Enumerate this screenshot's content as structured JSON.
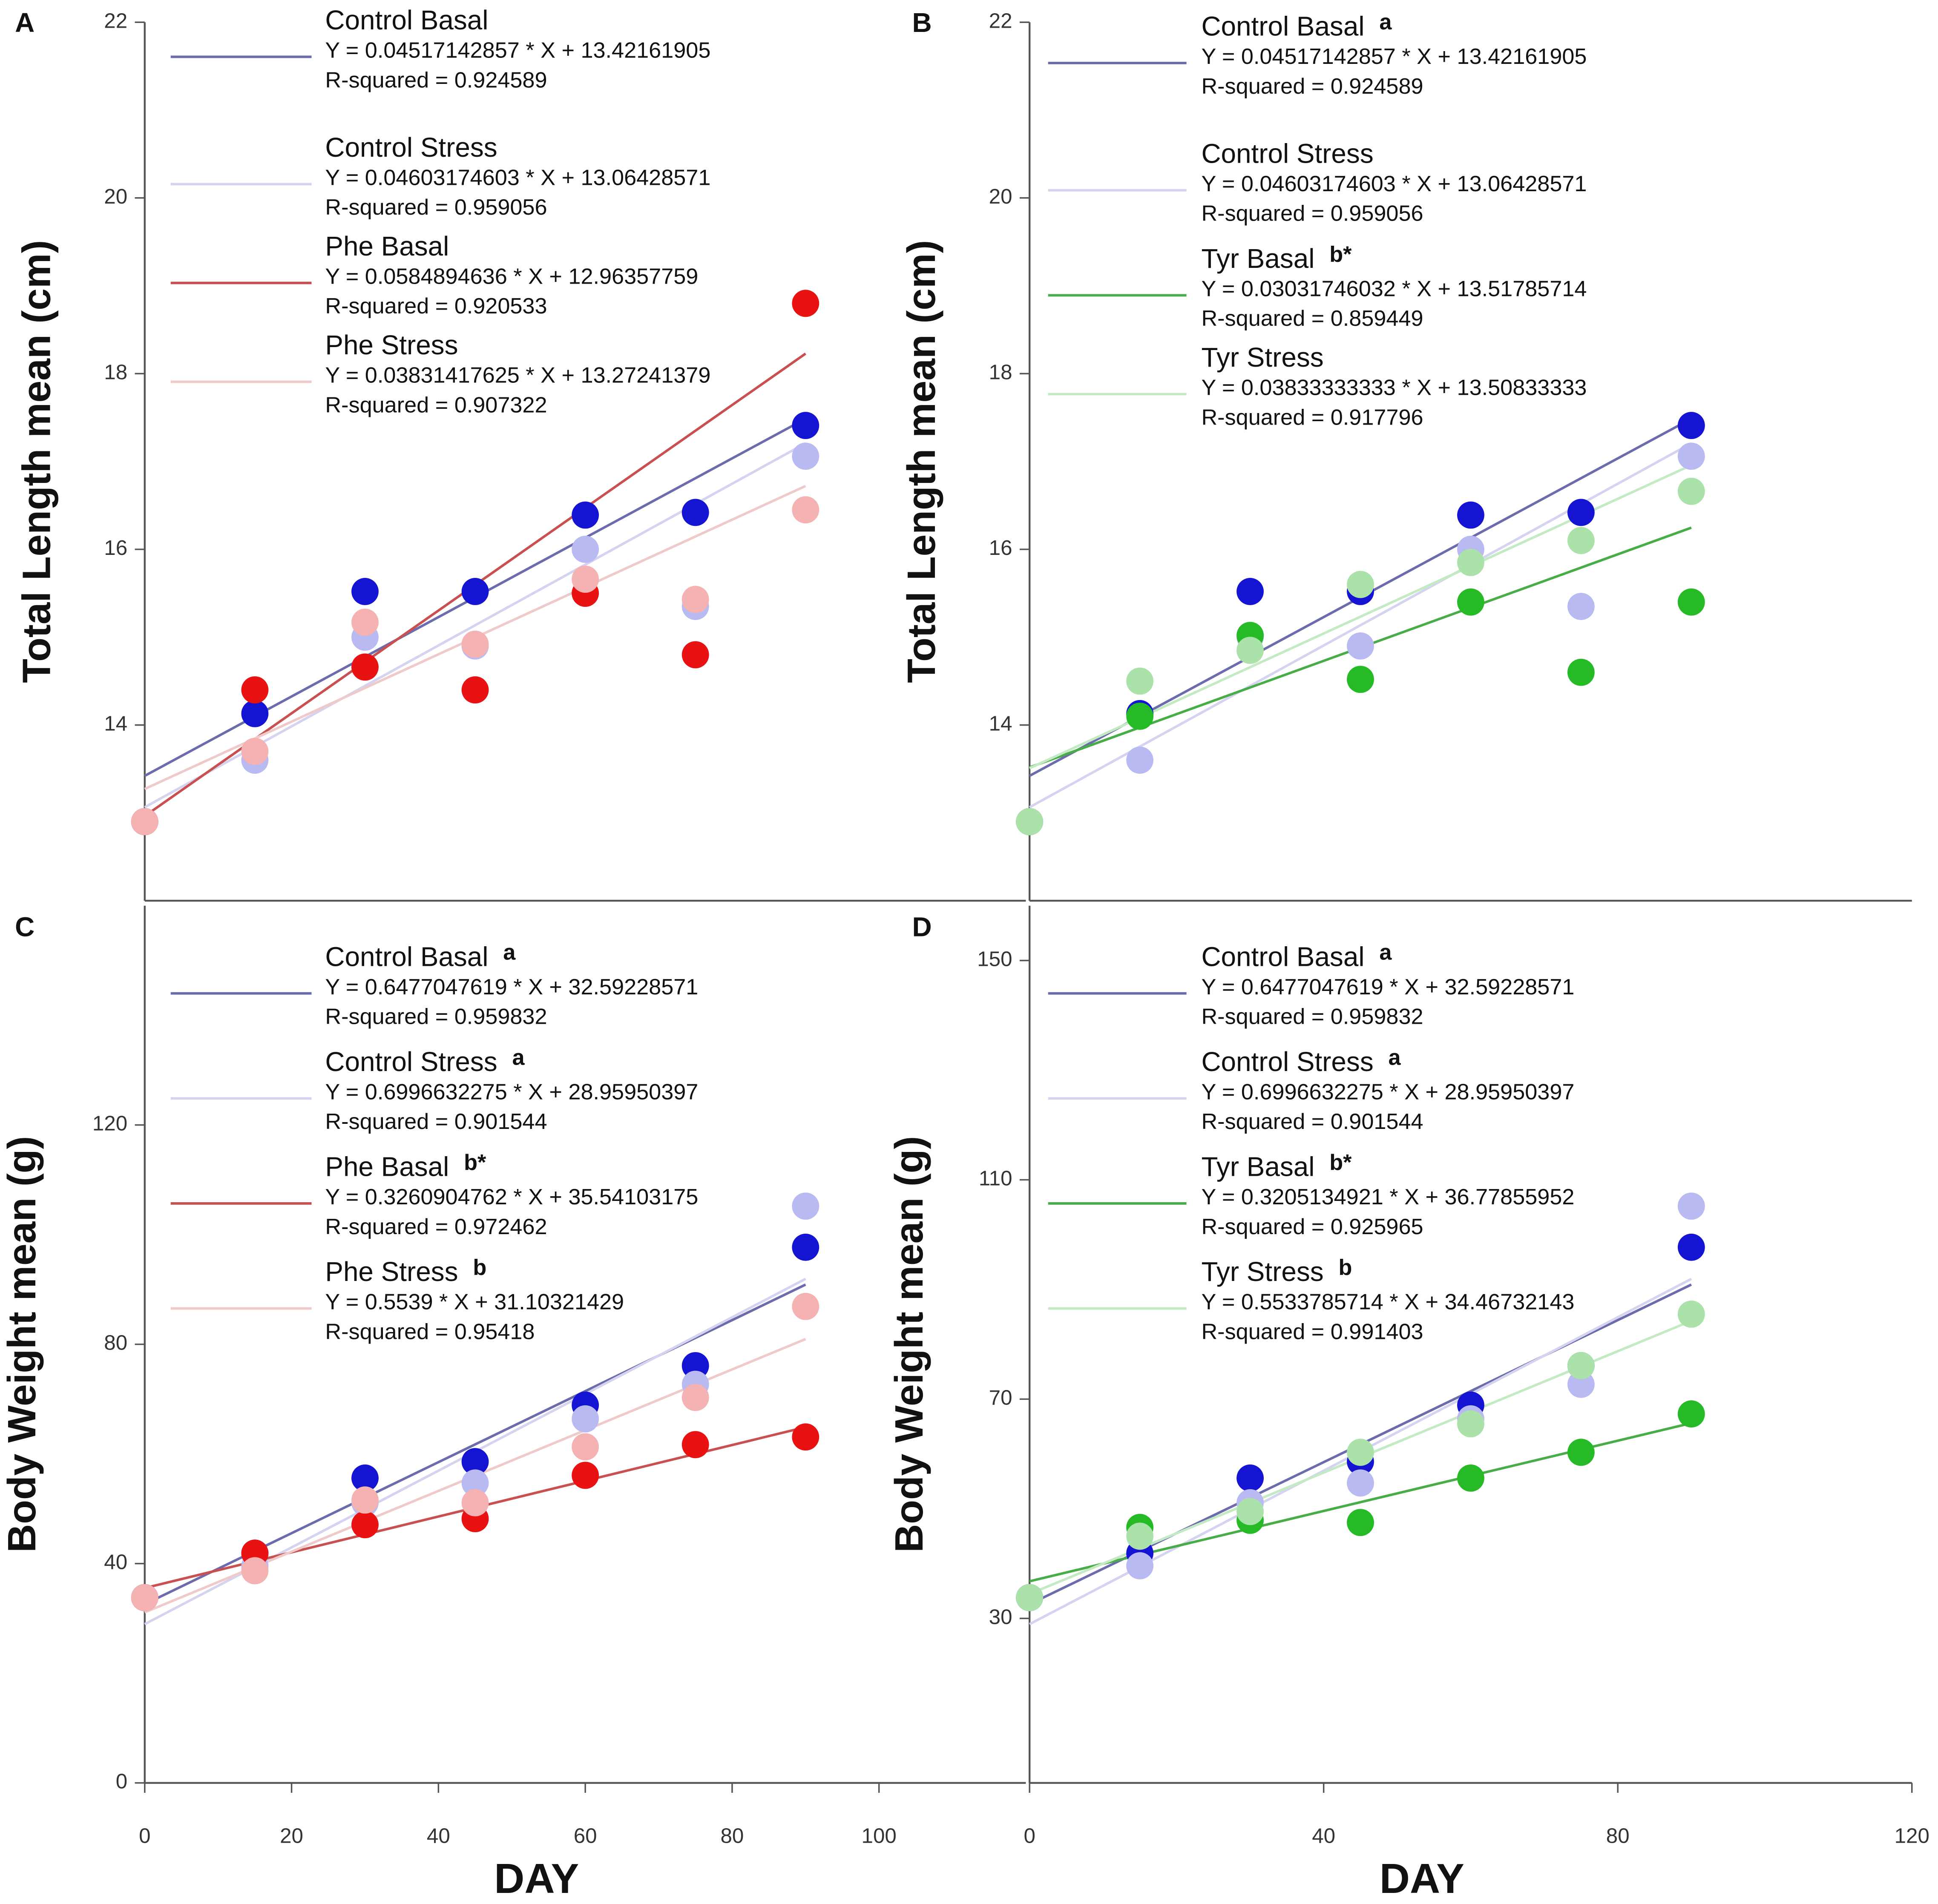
{
  "chart_data": [
    {
      "type": "scatter",
      "panel_label": "A",
      "ylabel": "Total Length mean (cm)",
      "x": [
        0,
        15,
        30,
        45,
        60,
        75,
        90
      ],
      "xlim": [
        0,
        120
      ],
      "ylim": [
        12,
        22
      ],
      "yticks": [
        14,
        16,
        18,
        20,
        22
      ],
      "series": [
        {
          "name": "Control Basal",
          "equation": " Y = 0.04517142857 * X + 13.42161905",
          "r_squared": "R-squared = 0.924589",
          "slope": 0.04517142857,
          "intercept": 13.42161905,
          "color": "#1414d2",
          "line_color": "#6c6cac",
          "values": [
            12.9,
            14.13,
            15.52,
            15.52,
            16.39,
            16.42,
            17.41
          ]
        },
        {
          "name": "Control Stress",
          "equation": "Y = 0.04603174603 * X + 13.06428571",
          "r_squared": "R-squared = 0.959056",
          "slope": 0.04603174603,
          "intercept": 13.06428571,
          "color": "#babaf2",
          "line_color": "#d4d4f0",
          "values": [
            12.9,
            13.6,
            15.0,
            14.9,
            16.0,
            15.35,
            17.06
          ]
        },
        {
          "name": "Phe Basal",
          "equation": "Y = 0.0584894636 * X + 12.96357759",
          "r_squared": "R-squared = 0.920533",
          "slope": 0.0584894636,
          "intercept": 12.96357759,
          "color": "#e81212",
          "line_color": "#c85050",
          "values": [
            12.9,
            14.4,
            14.66,
            14.4,
            15.5,
            14.8,
            18.8
          ]
        },
        {
          "name": "Phe Stress",
          "equation": "Y = 0.03831417625 * X + 13.27241379",
          "r_squared": "R-squared = 0.907322",
          "slope": 0.03831417625,
          "intercept": 13.27241379,
          "color": "#f4b2b2",
          "line_color": "#f0caca",
          "values": [
            12.9,
            13.7,
            15.17,
            14.92,
            15.66,
            15.43,
            16.45
          ]
        }
      ]
    },
    {
      "type": "scatter",
      "panel_label": "B",
      "ylabel": "Total Length mean (cm)",
      "x": [
        0,
        15,
        30,
        45,
        60,
        75,
        90
      ],
      "xlim": [
        0,
        120
      ],
      "ylim": [
        12,
        22
      ],
      "yticks": [
        14,
        16,
        18,
        20,
        22
      ],
      "series": [
        {
          "name": "Control Basal",
          "annotation": "a",
          "equation": "Y = 0.04517142857 * X + 13.42161905",
          "r_squared": "R-squared = 0.924589",
          "slope": 0.04517142857,
          "intercept": 13.42161905,
          "color": "#1414d2",
          "line_color": "#6c6cac",
          "values": [
            12.9,
            14.13,
            15.52,
            15.52,
            16.39,
            16.42,
            17.41
          ]
        },
        {
          "name": "Control Stress",
          "equation": "Y = 0.04603174603 * X + 13.06428571",
          "r_squared": "R-squared = 0.959056",
          "slope": 0.04603174603,
          "intercept": 13.06428571,
          "color": "#babaf2",
          "line_color": "#d4d4f0",
          "values": [
            12.9,
            13.6,
            15.0,
            14.9,
            16.0,
            15.35,
            17.06
          ]
        },
        {
          "name": "Tyr Basal",
          "annotation": "b*",
          "equation": "Y = 0.03031746032 * X + 13.51785714",
          "r_squared": "R-squared = 0.859449",
          "slope": 0.03031746032,
          "intercept": 13.51785714,
          "color": "#26bb26",
          "line_color": "#48ad48",
          "values": [
            12.9,
            14.1,
            15.02,
            14.52,
            15.4,
            14.6,
            15.4
          ]
        },
        {
          "name": "Tyr Stress",
          "equation": "Y = 0.03833333333 * X + 13.50833333",
          "r_squared": "R-squared = 0.917796",
          "slope": 0.03833333333,
          "intercept": 13.50833333,
          "color": "#aae2aa",
          "line_color": "#c4eac4",
          "values": [
            12.9,
            14.5,
            14.85,
            15.6,
            15.85,
            16.1,
            16.66
          ]
        }
      ]
    },
    {
      "type": "scatter",
      "panel_label": "C",
      "ylabel": "Body Weight mean (g)",
      "xlabel": "DAY",
      "x": [
        0,
        15,
        30,
        45,
        60,
        75,
        90
      ],
      "xlim": [
        0,
        120
      ],
      "xticks": [
        0,
        20,
        40,
        60,
        80,
        100
      ],
      "ylim": [
        0,
        160
      ],
      "yticks": [
        0,
        40,
        80,
        120
      ],
      "series": [
        {
          "name": "Control Basal",
          "annotation": "a",
          "equation": " Y = 0.6477047619 * X + 32.59228571",
          "r_squared": "R-squared = 0.959832",
          "slope": 0.6477047619,
          "intercept": 32.59228571,
          "color": "#1414d2",
          "line_color": "#6c6cac",
          "values": [
            33.8,
            41.9,
            55.6,
            58.6,
            68.9,
            76.1,
            97.7
          ]
        },
        {
          "name": "Control Stress",
          "annotation": "a",
          "equation": "Y = 0.6996632275 * X + 28.95950397",
          "r_squared": "R-squared = 0.901544",
          "slope": 0.6996632275,
          "intercept": 28.95950397,
          "color": "#babaf2",
          "line_color": "#d4d4f0",
          "values": [
            33.8,
            39.6,
            51.1,
            54.7,
            66.4,
            72.7,
            105.2
          ]
        },
        {
          "name": "Phe Basal",
          "annotation": "b*",
          "equation": "Y = 0.3260904762 * X + 35.54103175",
          "r_squared": "R-squared = 0.972462",
          "slope": 0.3260904762,
          "intercept": 35.54103175,
          "color": "#e81212",
          "line_color": "#c85050",
          "values": [
            33.8,
            41.9,
            47.1,
            48.2,
            56.1,
            61.7,
            63.1
          ]
        },
        {
          "name": "Phe Stress",
          "annotation": "b",
          "equation": "Y = 0.5539 * X + 31.10321429",
          "r_squared": "R-squared = 0.95418",
          "slope": 0.5539,
          "intercept": 31.10321429,
          "color": "#f4b2b2",
          "line_color": "#f0caca",
          "values": [
            33.8,
            38.7,
            51.6,
            51.1,
            61.3,
            70.3,
            86.9
          ]
        }
      ]
    },
    {
      "type": "scatter",
      "panel_label": "D",
      "ylabel": "Body Weight mean (g)",
      "xlabel": "DAY",
      "x": [
        0,
        15,
        30,
        45,
        60,
        75,
        90
      ],
      "xlim": [
        0,
        120
      ],
      "xticks": [
        0,
        40,
        80,
        120
      ],
      "ylim": [
        0,
        160
      ],
      "yticks": [
        30,
        70,
        110,
        150
      ],
      "series": [
        {
          "name": "Control Basal",
          "annotation": "a",
          "equation": "Y = 0.6477047619 * X + 32.59228571",
          "r_squared": "R-squared = 0.959832",
          "slope": 0.6477047619,
          "intercept": 32.59228571,
          "color": "#1414d2",
          "line_color": "#6c6cac",
          "values": [
            33.8,
            41.9,
            55.6,
            58.6,
            68.9,
            76.1,
            97.7
          ]
        },
        {
          "name": "Control Stress",
          "annotation": "a",
          "equation": "Y = 0.6996632275 * X + 28.95950397",
          "r_squared": "R-squared = 0.901544",
          "slope": 0.6996632275,
          "intercept": 28.95950397,
          "color": "#babaf2",
          "line_color": "#d4d4f0",
          "values": [
            33.8,
            39.6,
            51.1,
            54.7,
            66.4,
            72.7,
            105.2
          ]
        },
        {
          "name": "Tyr Basal",
          "annotation": "b*",
          "equation": "Y = 0.3205134921 * X + 36.77855952",
          "r_squared": "R-squared = 0.925965",
          "slope": 0.3205134921,
          "intercept": 36.77855952,
          "color": "#26bb26",
          "line_color": "#48ad48",
          "values": [
            33.8,
            46.6,
            47.9,
            47.5,
            55.6,
            60.3,
            67.3
          ]
        },
        {
          "name": "Tyr Stress",
          "annotation": "b",
          "equation": "Y = 0.5533785714 * X + 34.46732143",
          "r_squared": "R-squared = 0.991403",
          "slope": 0.5533785714,
          "intercept": 34.46732143,
          "color": "#aae2aa",
          "line_color": "#c4eac4",
          "values": [
            33.8,
            45.0,
            49.5,
            60.3,
            65.5,
            76.1,
            85.5
          ]
        }
      ]
    }
  ]
}
